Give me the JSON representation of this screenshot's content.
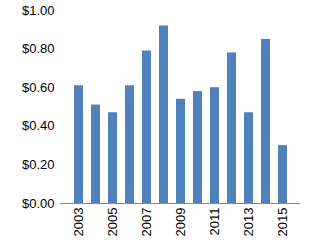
{
  "chart_data": {
    "type": "bar",
    "categories": [
      "2003",
      null,
      "2005",
      null,
      "2007",
      null,
      "2009",
      null,
      "2011",
      null,
      "2013",
      null,
      "2015"
    ],
    "values": [
      0.61,
      0.51,
      0.47,
      0.61,
      0.79,
      0.92,
      0.54,
      0.58,
      0.6,
      0.78,
      0.47,
      0.85,
      0.3
    ],
    "color": "#4f81bd",
    "ylim": [
      0,
      1
    ],
    "yticks": [
      {
        "value": 0,
        "label": "$0.00"
      },
      {
        "value": 0.2,
        "label": "$0.20"
      },
      {
        "value": 0.4,
        "label": "$0.40"
      },
      {
        "value": 0.6,
        "label": "$0.60"
      },
      {
        "value": 0.8,
        "label": "$0.80"
      },
      {
        "value": 1,
        "label": "$1.00"
      }
    ],
    "grid": false
  }
}
